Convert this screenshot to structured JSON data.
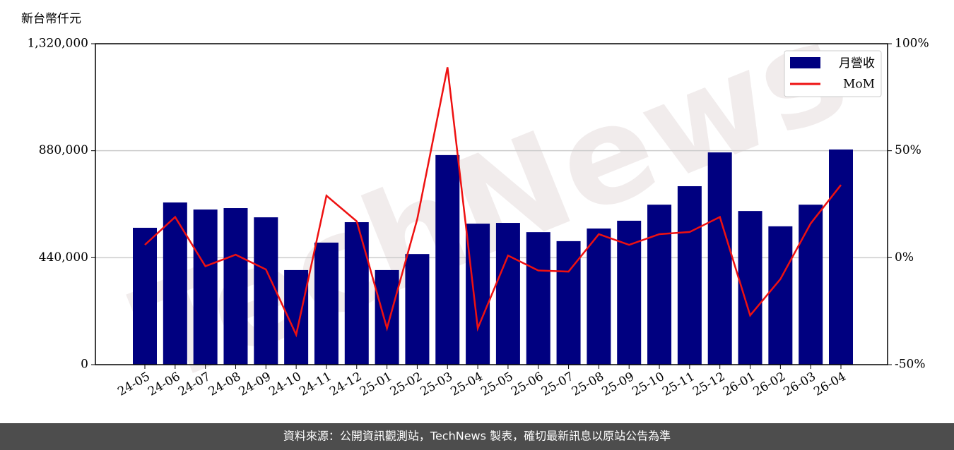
{
  "chart_data": {
    "type": "bar_line",
    "y_label": "新台幣仟元",
    "footer": "資料來源：公開資訊觀測站，TechNews 製表，確切最新訊息以原站公告為準",
    "watermark": "TechNews",
    "categories": [
      "24-05",
      "24-06",
      "24-07",
      "24-08",
      "24-09",
      "24-10",
      "24-11",
      "24-12",
      "25-01",
      "25-02",
      "25-03",
      "25-04",
      "25-05",
      "25-06",
      "25-07",
      "25-08",
      "25-09",
      "25-10",
      "25-11",
      "25-12",
      "26-01",
      "26-02",
      "26-03",
      "26-04"
    ],
    "series": [
      {
        "name": "月營收",
        "color": "#000080",
        "axis": "y",
        "values": [
          563000,
          667000,
          638000,
          644000,
          606000,
          389000,
          502000,
          586000,
          389000,
          455000,
          862000,
          580000,
          583000,
          545000,
          508000,
          560000,
          592000,
          658000,
          734000,
          873000,
          632000,
          569000,
          658000,
          885000
        ]
      },
      {
        "name": "MoM",
        "color": "#ee1111",
        "axis": "y2",
        "values": [
          6,
          19,
          -4,
          1.4,
          -5.5,
          -36,
          29,
          17,
          -33,
          18,
          89,
          -33,
          1,
          -6,
          -6.5,
          11,
          6,
          11,
          12,
          19,
          -27,
          -10,
          16,
          34
        ]
      }
    ],
    "ylim": [
      0,
      1320000
    ],
    "yticks": [
      0,
      {
        "value": 440000,
        "label": "440,000"
      },
      {
        "value": 880000,
        "label": "880,000"
      },
      {
        "value": 1320000,
        "label": "1,320,000"
      }
    ],
    "y2lim": [
      -50,
      100
    ],
    "y2ticks": [
      {
        "value": -50,
        "label": "-50%"
      },
      {
        "value": 0,
        "label": "0%"
      },
      {
        "value": 50,
        "label": "50%"
      },
      {
        "value": 100,
        "label": "100%"
      }
    ],
    "grid": true,
    "legend": "upper-right"
  }
}
